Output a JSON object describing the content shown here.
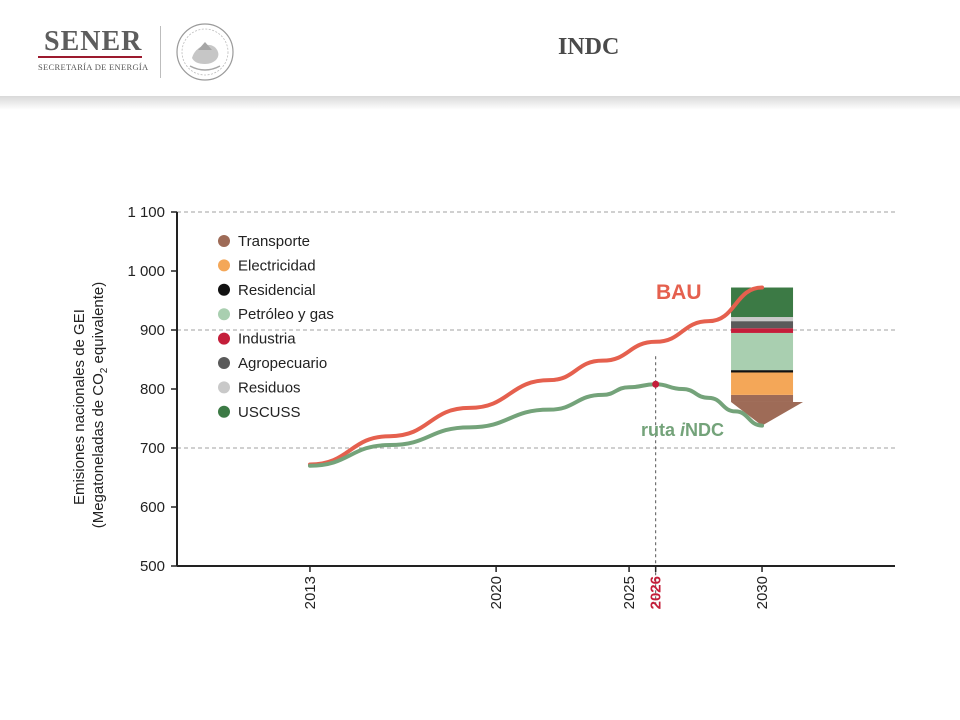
{
  "header": {
    "logo_text": "SENER",
    "logo_subtitle": "SECRETARÍA DE ENERGÍA",
    "title": "INDC"
  },
  "colors": {
    "bau": "#e5604e",
    "indc": "#74a37a",
    "highlight": "#c41e3a",
    "axis": "#222222",
    "grid": "#a0a0a0"
  },
  "chart_data": {
    "type": "line",
    "ylabel_line1": "Emisiones nacionales de GEI",
    "ylabel_line2_pre": "(Megatoneladas de CO",
    "ylabel_sub": "2",
    "ylabel_line2_post": " equivalente)",
    "ylim": [
      500,
      1100
    ],
    "yticks": [
      {
        "value": 500,
        "label": "500"
      },
      {
        "value": 600,
        "label": "600"
      },
      {
        "value": 700,
        "label": "700"
      },
      {
        "value": 800,
        "label": "800"
      },
      {
        "value": 900,
        "label": "900"
      },
      {
        "value": 1000,
        "label": "1 000"
      },
      {
        "value": 1100,
        "label": "1 100"
      }
    ],
    "gridlines": [
      700,
      900,
      1100
    ],
    "xlim": [
      2008,
      2035
    ],
    "xticks": [
      {
        "value": 2013,
        "label": "2013",
        "highlight": false
      },
      {
        "value": 2020,
        "label": "2020",
        "highlight": false
      },
      {
        "value": 2025,
        "label": "2025",
        "highlight": false
      },
      {
        "value": 2026,
        "label": "2026",
        "highlight": true
      },
      {
        "value": 2030,
        "label": "2030",
        "highlight": false
      }
    ],
    "series": [
      {
        "name": "BAU",
        "color": "#e5604e",
        "points": [
          [
            2013,
            672
          ],
          [
            2016,
            720
          ],
          [
            2019,
            768
          ],
          [
            2022,
            815
          ],
          [
            2024,
            848
          ],
          [
            2026,
            880
          ],
          [
            2028,
            915
          ],
          [
            2030,
            972
          ]
        ]
      },
      {
        "name": "ruta iNDC",
        "name_plain": "ruta ",
        "name_italic": "i",
        "name_tail": "NDC",
        "color": "#74a37a",
        "points": [
          [
            2013,
            670
          ],
          [
            2016,
            705
          ],
          [
            2019,
            735
          ],
          [
            2022,
            765
          ],
          [
            2024,
            790
          ],
          [
            2025,
            803
          ],
          [
            2026,
            808
          ],
          [
            2027,
            800
          ],
          [
            2028,
            785
          ],
          [
            2029,
            762
          ],
          [
            2030,
            738
          ]
        ]
      }
    ],
    "marker": {
      "x": 2026,
      "y": 808
    },
    "legend": {
      "placement": "top-left",
      "items": [
        {
          "label": "Transporte",
          "color": "#9e6b57"
        },
        {
          "label": "Electricidad",
          "color": "#f4a758"
        },
        {
          "label": "Residencial",
          "color": "#111111"
        },
        {
          "label": "Petróleo y gas",
          "color": "#a9cfb0"
        },
        {
          "label": "Industria",
          "color": "#c41e3a"
        },
        {
          "label": "Agropecuario",
          "color": "#5a5a5a"
        },
        {
          "label": "Residuos",
          "color": "#c9c9c9"
        },
        {
          "label": "USCUSS",
          "color": "#3c7a45"
        }
      ]
    },
    "stack_2030": {
      "x": 2030,
      "segments": [
        {
          "sector": "Transporte",
          "from": 778,
          "to": 738,
          "color": "#9e6b57"
        },
        {
          "sector": "Transporte",
          "from": 778,
          "to": 790,
          "color": "#9e6b57"
        },
        {
          "sector": "Electricidad",
          "from": 790,
          "to": 828,
          "color": "#f4a758"
        },
        {
          "sector": "Residencial",
          "from": 828,
          "to": 832,
          "color": "#111111"
        },
        {
          "sector": "Petróleo y gas",
          "from": 832,
          "to": 895,
          "color": "#a9cfb0"
        },
        {
          "sector": "Industria",
          "from": 895,
          "to": 903,
          "color": "#c41e3a"
        },
        {
          "sector": "Agropecuario",
          "from": 903,
          "to": 915,
          "color": "#5a5a5a"
        },
        {
          "sector": "Residuos",
          "from": 915,
          "to": 922,
          "color": "#c9c9c9"
        },
        {
          "sector": "USCUSS",
          "from": 922,
          "to": 972,
          "color": "#3c7a45"
        }
      ]
    }
  }
}
